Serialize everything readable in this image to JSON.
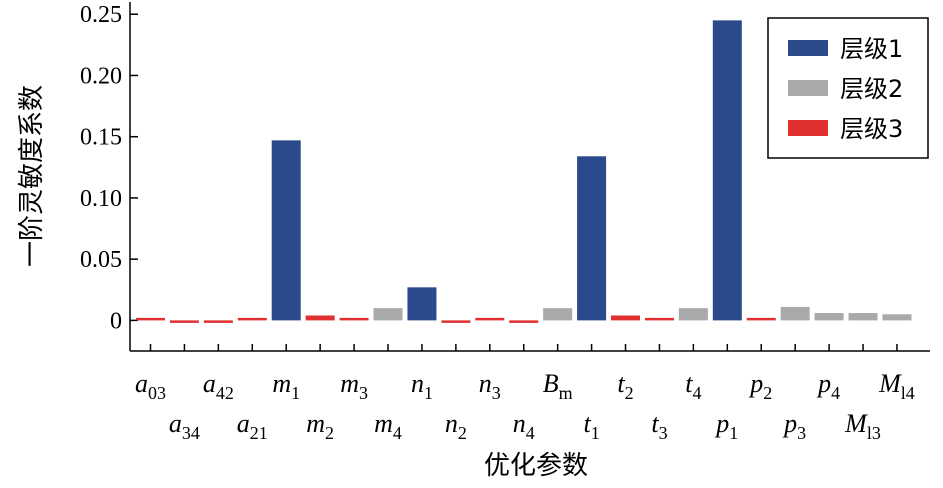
{
  "chart_data": {
    "type": "bar",
    "ylabel": "一阶灵敏度系数",
    "xlabel": "优化参数",
    "ylim": [
      -0.025,
      0.26
    ],
    "yticks": [
      "0",
      "0.05",
      "0.10",
      "0.15",
      "0.20",
      "0.25"
    ],
    "legend_position": "top-right",
    "grid": false,
    "legend": [
      {
        "label": "层级1",
        "color": "#2a4a8c"
      },
      {
        "label": "层级2",
        "color": "#a9a9a9"
      },
      {
        "label": "层级3",
        "color": "#e03030"
      }
    ],
    "bars": [
      {
        "base": "a",
        "sub": "03",
        "level": 3,
        "value": 0.001
      },
      {
        "base": "a",
        "sub": "34",
        "level": 3,
        "value": -0.002
      },
      {
        "base": "a",
        "sub": "42",
        "level": 3,
        "value": -0.0005
      },
      {
        "base": "a",
        "sub": "21",
        "level": 3,
        "value": 0.001
      },
      {
        "base": "m",
        "sub": "1",
        "level": 1,
        "value": 0.147
      },
      {
        "base": "m",
        "sub": "2",
        "level": 3,
        "value": 0.004
      },
      {
        "base": "m",
        "sub": "3",
        "level": 3,
        "value": 0.002
      },
      {
        "base": "m",
        "sub": "4",
        "level": 2,
        "value": 0.01
      },
      {
        "base": "n",
        "sub": "1",
        "level": 1,
        "value": 0.027
      },
      {
        "base": "n",
        "sub": "2",
        "level": 3,
        "value": -0.002
      },
      {
        "base": "n",
        "sub": "3",
        "level": 3,
        "value": 0.002
      },
      {
        "base": "n",
        "sub": "4",
        "level": 3,
        "value": -0.001
      },
      {
        "base": "B",
        "sub": "m",
        "level": 2,
        "value": 0.01
      },
      {
        "base": "t",
        "sub": "1",
        "level": 1,
        "value": 0.134
      },
      {
        "base": "t",
        "sub": "2",
        "level": 3,
        "value": 0.004
      },
      {
        "base": "t",
        "sub": "3",
        "level": 3,
        "value": 0.002
      },
      {
        "base": "t",
        "sub": "4",
        "level": 2,
        "value": 0.01
      },
      {
        "base": "p",
        "sub": "1",
        "level": 1,
        "value": 0.245
      },
      {
        "base": "p",
        "sub": "2",
        "level": 3,
        "value": 0.001
      },
      {
        "base": "p",
        "sub": "3",
        "level": 2,
        "value": 0.011
      },
      {
        "base": "p",
        "sub": "4",
        "level": 2,
        "value": 0.006
      },
      {
        "base": "M",
        "sub": "l3",
        "level": 2,
        "value": 0.006
      },
      {
        "base": "M",
        "sub": "l4",
        "level": 2,
        "value": 0.005
      }
    ]
  }
}
